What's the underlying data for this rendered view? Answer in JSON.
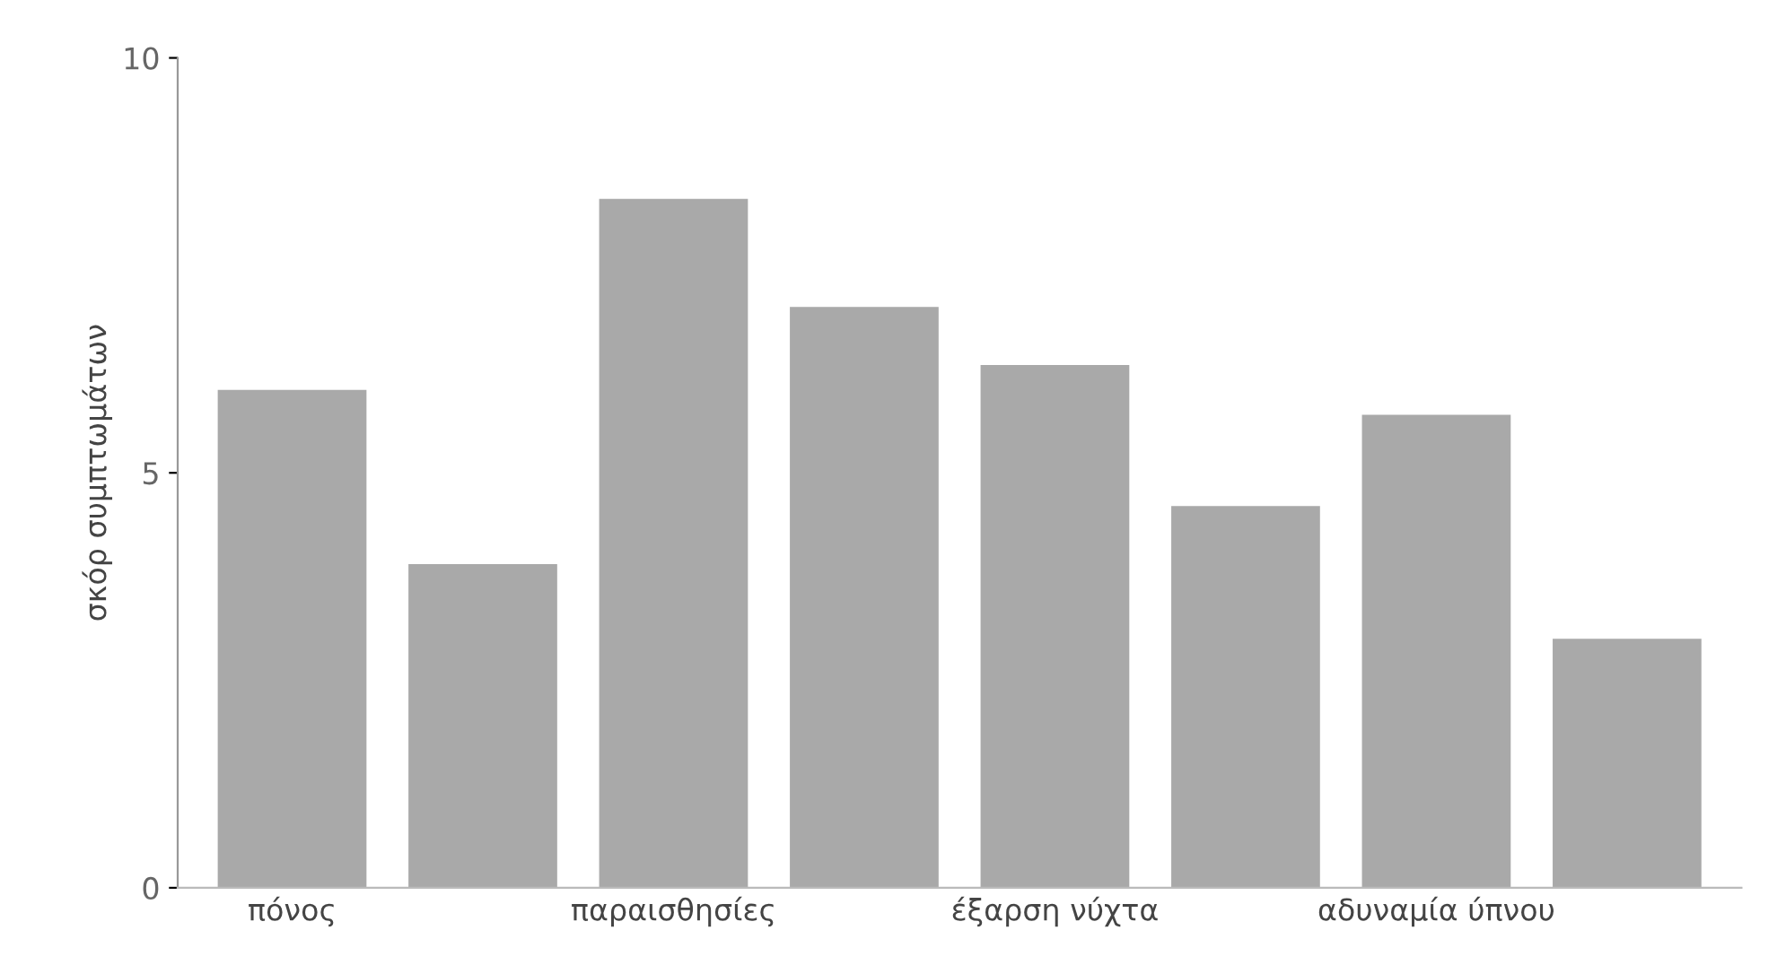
{
  "chart_data": {
    "type": "bar",
    "ylabel": "σκόρ συμπτωμάτων",
    "categories": [
      "πόνος",
      null,
      "παραισθησίες",
      null,
      "έξαρση νύχτα",
      null,
      "αδυναμία ύπνου",
      null
    ],
    "values": [
      6.0,
      3.9,
      8.3,
      7.0,
      6.3,
      4.6,
      5.7,
      3.0
    ],
    "color": "#a9a9a9",
    "ylim": [
      0,
      10
    ],
    "yticks": [
      0,
      5,
      10
    ],
    "grid": false,
    "legend": false
  }
}
